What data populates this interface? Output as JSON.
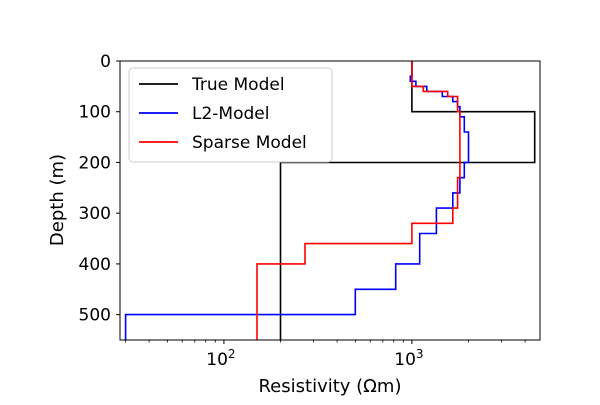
{
  "chart_data": {
    "type": "line",
    "xlabel": "Resistivity (Ωm)",
    "ylabel": "Depth (m)",
    "x_scale": "log",
    "xlim": [
      28,
      4800
    ],
    "ylim": [
      550,
      0
    ],
    "x_ticks": [
      {
        "value": 100,
        "base": "10",
        "exp": "2"
      },
      {
        "value": 1000,
        "base": "10",
        "exp": "3"
      }
    ],
    "y_ticks": [
      0,
      100,
      200,
      300,
      400,
      500
    ],
    "grid": false,
    "legend_position": "top-left",
    "series": [
      {
        "name": "True Model",
        "color": "#000000",
        "points": [
          [
            1000,
            0
          ],
          [
            1000,
            100
          ],
          [
            4500,
            100
          ],
          [
            4500,
            200
          ],
          [
            200,
            200
          ],
          [
            200,
            550
          ]
        ]
      },
      {
        "name": "L2-Model",
        "color": "#0000ff",
        "points": [
          [
            1000,
            0
          ],
          [
            1000,
            30
          ],
          [
            980,
            30
          ],
          [
            980,
            40
          ],
          [
            1050,
            40
          ],
          [
            1050,
            50
          ],
          [
            1200,
            50
          ],
          [
            1200,
            60
          ],
          [
            1450,
            60
          ],
          [
            1450,
            70
          ],
          [
            1650,
            70
          ],
          [
            1650,
            80
          ],
          [
            1750,
            80
          ],
          [
            1750,
            90
          ],
          [
            1800,
            90
          ],
          [
            1800,
            110
          ],
          [
            1900,
            110
          ],
          [
            1900,
            140
          ],
          [
            2000,
            140
          ],
          [
            2000,
            200
          ],
          [
            1900,
            200
          ],
          [
            1900,
            230
          ],
          [
            1800,
            230
          ],
          [
            1800,
            260
          ],
          [
            1650,
            260
          ],
          [
            1650,
            290
          ],
          [
            1350,
            290
          ],
          [
            1350,
            340
          ],
          [
            1100,
            340
          ],
          [
            1100,
            400
          ],
          [
            820,
            400
          ],
          [
            820,
            450
          ],
          [
            500,
            450
          ],
          [
            500,
            500
          ],
          [
            180,
            500
          ],
          [
            180,
            500
          ],
          [
            30,
            500
          ],
          [
            30,
            550
          ]
        ]
      },
      {
        "name": "Sparse Model",
        "color": "#ff0000",
        "points": [
          [
            1000,
            0
          ],
          [
            1000,
            50
          ],
          [
            1150,
            50
          ],
          [
            1150,
            60
          ],
          [
            1550,
            60
          ],
          [
            1550,
            70
          ],
          [
            1750,
            70
          ],
          [
            1750,
            100
          ],
          [
            1800,
            100
          ],
          [
            1800,
            230
          ],
          [
            1750,
            230
          ],
          [
            1750,
            290
          ],
          [
            1650,
            290
          ],
          [
            1650,
            320
          ],
          [
            1000,
            320
          ],
          [
            1000,
            360
          ],
          [
            270,
            360
          ],
          [
            270,
            400
          ],
          [
            150,
            400
          ],
          [
            150,
            550
          ]
        ]
      }
    ]
  }
}
